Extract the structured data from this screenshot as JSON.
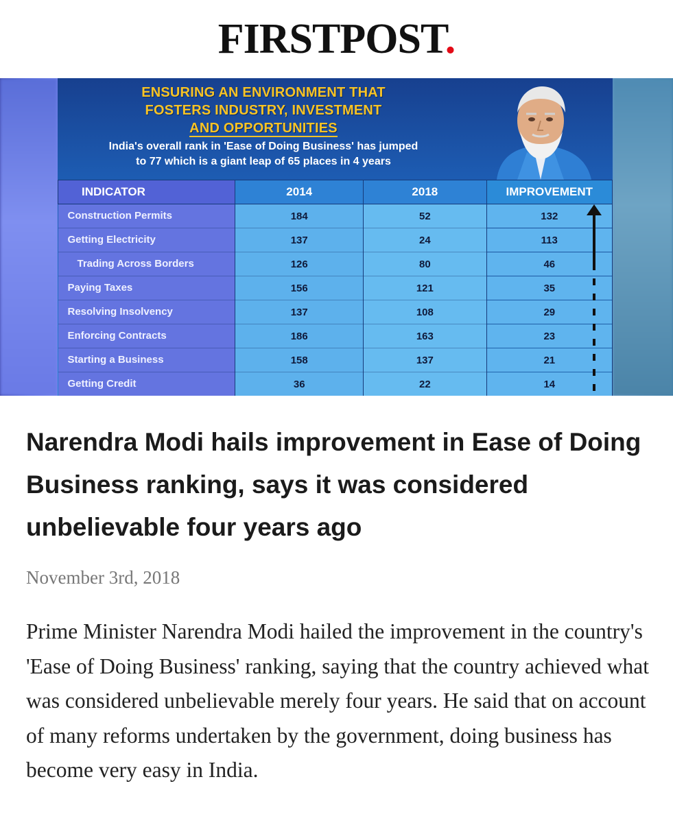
{
  "masthead": {
    "logo_text": "FIRSTPOST",
    "logo_dot": ".",
    "brand_red": "#e30b17"
  },
  "infographic": {
    "title_line1": "ENSURING AN ENVIRONMENT THAT",
    "title_line2": "FOSTERS INDUSTRY, INVESTMENT",
    "title_line3": "AND OPPORTUNITIES",
    "subtitle_line1": "India's overall rank in 'Ease of Doing Business' has jumped",
    "subtitle_line2": "to 77 which is a giant leap of 65 places in 4 years",
    "title_color": "#f7c325",
    "portrait_icon": "person-portrait",
    "table": {
      "headers": {
        "indicator": "INDICATOR",
        "y2014": "2014",
        "y2018": "2018",
        "improvement": "IMPROVEMENT"
      },
      "rows": [
        {
          "indicator": "Construction Permits",
          "y2014": "184",
          "y2018": "52",
          "improvement": "132"
        },
        {
          "indicator": "Getting Electricity",
          "y2014": "137",
          "y2018": "24",
          "improvement": "113"
        },
        {
          "indicator": "Trading Across Borders",
          "y2014": "126",
          "y2018": "80",
          "improvement": "46"
        },
        {
          "indicator": "Paying Taxes",
          "y2014": "156",
          "y2018": "121",
          "improvement": "35"
        },
        {
          "indicator": "Resolving Insolvency",
          "y2014": "137",
          "y2018": "108",
          "improvement": "29"
        },
        {
          "indicator": "Enforcing Contracts",
          "y2014": "186",
          "y2018": "163",
          "improvement": "23"
        },
        {
          "indicator": "Starting a Business",
          "y2014": "158",
          "y2018": "137",
          "improvement": "21"
        },
        {
          "indicator": "Getting Credit",
          "y2014": "36",
          "y2018": "22",
          "improvement": "14"
        }
      ]
    }
  },
  "article": {
    "headline": "Narendra Modi hails improvement in Ease of Doing Business ranking, says it was considered unbelievable four years ago",
    "date": "November 3rd, 2018",
    "body": "Prime Minister Narendra Modi hailed the improvement in the country's 'Ease of Doing Business' ranking, saying that the country achieved what was considered unbelievable merely four years. He said that on account of many reforms undertaken by the government, doing business has become very easy in India."
  }
}
